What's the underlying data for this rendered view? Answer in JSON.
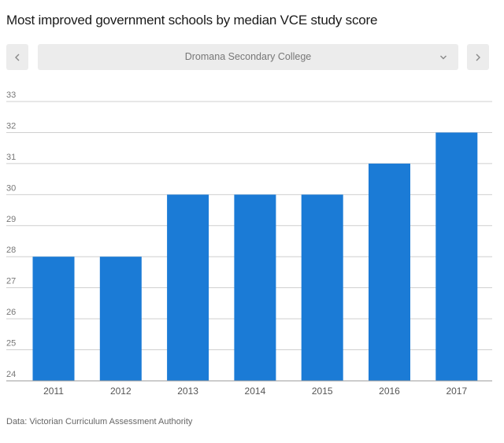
{
  "header": {
    "title": "Most improved government schools by median VCE study score"
  },
  "selector": {
    "prev_icon": "chevron-left-icon",
    "next_icon": "chevron-right-icon",
    "dropdown_icon": "chevron-down-icon",
    "selected": "Dromana Secondary College"
  },
  "chart_data": {
    "type": "bar",
    "title": "Most improved government schools by median VCE study score",
    "xlabel": "",
    "ylabel": "",
    "categories": [
      "2011",
      "2012",
      "2013",
      "2014",
      "2015",
      "2016",
      "2017"
    ],
    "values": [
      28,
      28,
      30,
      30,
      30,
      31,
      32
    ],
    "ylim": [
      24,
      33
    ],
    "yticks": [
      24,
      25,
      26,
      27,
      28,
      29,
      30,
      31,
      32,
      33
    ],
    "grid": true,
    "bar_color": "#1b7bd6"
  },
  "footer": {
    "source": "Data: Victorian Curriculum Assessment Authority"
  }
}
